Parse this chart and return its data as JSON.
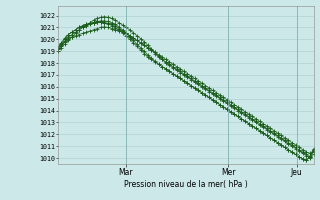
{
  "title": "Pression niveau de la mer( hPa )",
  "bg_color": "#cce8e8",
  "grid_color": "#aacccc",
  "line_color": "#1a5c1a",
  "marker": "+",
  "ylim": [
    1009.5,
    1022.8
  ],
  "yticks": [
    1010,
    1011,
    1012,
    1013,
    1014,
    1015,
    1016,
    1017,
    1018,
    1019,
    1020,
    1021,
    1022
  ],
  "xtick_labels": [
    "Mar",
    "Mer",
    "Jeu"
  ],
  "xlim": [
    0,
    90
  ],
  "xtick_pos": [
    24,
    60,
    84
  ],
  "vlines": [
    24,
    60,
    84
  ],
  "lines": [
    [
      1019.0,
      1019.4,
      1019.8,
      1020.0,
      1020.2,
      1020.3,
      1020.4,
      1020.5,
      1020.6,
      1020.7,
      1020.8,
      1020.9,
      1021.0,
      1021.05,
      1021.0,
      1020.9,
      1020.8,
      1020.7,
      1020.6,
      1020.5,
      1020.3,
      1020.1,
      1019.9,
      1019.7,
      1019.5,
      1019.3,
      1019.1,
      1018.9,
      1018.7,
      1018.5,
      1018.3,
      1018.1,
      1017.9,
      1017.7,
      1017.5,
      1017.3,
      1017.1,
      1016.9,
      1016.7,
      1016.5,
      1016.3,
      1016.1,
      1015.9,
      1015.7,
      1015.5,
      1015.3,
      1015.1,
      1014.9,
      1014.7,
      1014.5,
      1014.3,
      1014.1,
      1013.9,
      1013.7,
      1013.5,
      1013.3,
      1013.1,
      1012.9,
      1012.7,
      1012.5,
      1012.3,
      1012.1,
      1011.9,
      1011.7,
      1011.5,
      1011.3,
      1011.1,
      1010.9,
      1010.7,
      1010.5,
      1010.4,
      1010.5
    ],
    [
      1019.2,
      1019.6,
      1020.0,
      1020.4,
      1020.6,
      1020.8,
      1021.0,
      1021.15,
      1021.25,
      1021.35,
      1021.4,
      1021.45,
      1021.45,
      1021.4,
      1021.35,
      1021.25,
      1021.1,
      1020.9,
      1020.7,
      1020.5,
      1020.3,
      1020.1,
      1019.9,
      1019.7,
      1019.5,
      1019.3,
      1019.1,
      1018.8,
      1018.5,
      1018.3,
      1018.1,
      1017.9,
      1017.7,
      1017.5,
      1017.3,
      1017.1,
      1016.9,
      1016.7,
      1016.5,
      1016.3,
      1016.1,
      1015.9,
      1015.7,
      1015.5,
      1015.3,
      1015.1,
      1014.9,
      1014.7,
      1014.5,
      1014.3,
      1014.1,
      1013.9,
      1013.7,
      1013.5,
      1013.3,
      1013.1,
      1012.9,
      1012.7,
      1012.5,
      1012.3,
      1012.1,
      1011.9,
      1011.7,
      1011.5,
      1011.3,
      1011.1,
      1010.9,
      1010.7,
      1010.5,
      1010.3,
      1010.1,
      1010.3
    ],
    [
      1019.0,
      1019.3,
      1019.6,
      1019.9,
      1020.2,
      1020.5,
      1020.8,
      1021.0,
      1021.2,
      1021.4,
      1021.6,
      1021.75,
      1021.85,
      1021.9,
      1021.85,
      1021.75,
      1021.6,
      1021.4,
      1021.2,
      1021.0,
      1020.8,
      1020.55,
      1020.3,
      1020.05,
      1019.8,
      1019.5,
      1019.2,
      1018.9,
      1018.6,
      1018.3,
      1018.0,
      1017.8,
      1017.6,
      1017.4,
      1017.2,
      1017.0,
      1016.8,
      1016.6,
      1016.4,
      1016.2,
      1016.0,
      1015.8,
      1015.6,
      1015.4,
      1015.2,
      1015.0,
      1014.8,
      1014.6,
      1014.4,
      1014.2,
      1014.0,
      1013.8,
      1013.6,
      1013.4,
      1013.2,
      1013.0,
      1012.8,
      1012.6,
      1012.4,
      1012.2,
      1012.0,
      1011.8,
      1011.6,
      1011.4,
      1011.2,
      1011.0,
      1010.8,
      1010.6,
      1010.4,
      1010.2,
      1010.0,
      1010.6
    ],
    [
      1019.3,
      1019.7,
      1020.1,
      1020.4,
      1020.6,
      1020.8,
      1021.0,
      1021.15,
      1021.25,
      1021.35,
      1021.4,
      1021.45,
      1021.45,
      1021.4,
      1021.3,
      1021.15,
      1020.95,
      1020.75,
      1020.55,
      1020.3,
      1020.0,
      1019.7,
      1019.4,
      1019.1,
      1018.8,
      1018.5,
      1018.3,
      1018.1,
      1017.9,
      1017.7,
      1017.5,
      1017.3,
      1017.1,
      1016.9,
      1016.7,
      1016.5,
      1016.3,
      1016.1,
      1015.9,
      1015.7,
      1015.5,
      1015.3,
      1015.1,
      1014.9,
      1014.7,
      1014.5,
      1014.3,
      1014.1,
      1013.9,
      1013.7,
      1013.5,
      1013.3,
      1013.1,
      1012.9,
      1012.7,
      1012.5,
      1012.3,
      1012.1,
      1011.9,
      1011.7,
      1011.5,
      1011.3,
      1011.1,
      1010.9,
      1010.7,
      1010.5,
      1010.3,
      1010.1,
      1009.9,
      1009.8,
      1010.2,
      1010.8
    ],
    [
      1019.15,
      1019.5,
      1019.85,
      1020.15,
      1020.4,
      1020.6,
      1020.8,
      1021.0,
      1021.15,
      1021.3,
      1021.4,
      1021.5,
      1021.55,
      1021.55,
      1021.5,
      1021.4,
      1021.25,
      1021.05,
      1020.8,
      1020.5,
      1020.2,
      1019.9,
      1019.6,
      1019.3,
      1019.0,
      1018.7,
      1018.4,
      1018.15,
      1017.9,
      1017.7,
      1017.5,
      1017.3,
      1017.1,
      1016.9,
      1016.7,
      1016.5,
      1016.3,
      1016.1,
      1015.9,
      1015.7,
      1015.5,
      1015.3,
      1015.1,
      1014.9,
      1014.7,
      1014.5,
      1014.3,
      1014.1,
      1013.9,
      1013.7,
      1013.5,
      1013.3,
      1013.1,
      1012.9,
      1012.7,
      1012.5,
      1012.3,
      1012.1,
      1011.9,
      1011.7,
      1011.5,
      1011.3,
      1011.1,
      1010.9,
      1010.7,
      1010.5,
      1010.3,
      1010.1,
      1009.95,
      1009.85,
      1010.05,
      1010.7
    ]
  ]
}
